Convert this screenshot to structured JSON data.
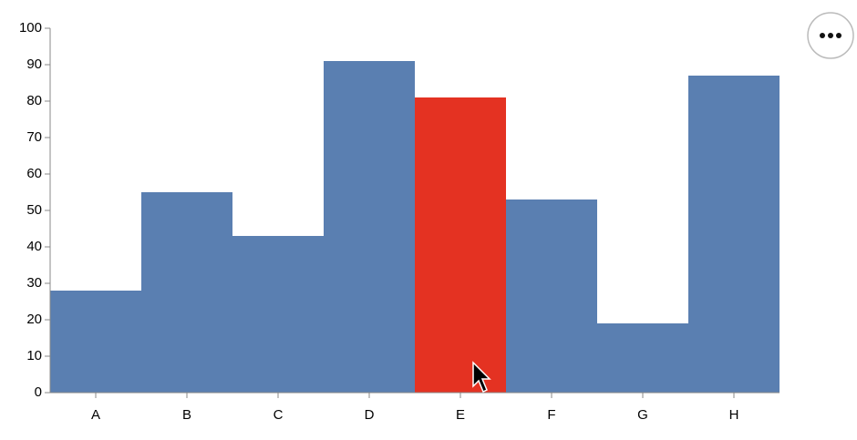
{
  "chart_data": {
    "type": "bar",
    "categories": [
      "A",
      "B",
      "C",
      "D",
      "E",
      "F",
      "G",
      "H"
    ],
    "values": [
      28,
      55,
      43,
      91,
      81,
      53,
      19,
      87
    ],
    "colors": [
      "#5a7fb1",
      "#5a7fb1",
      "#5a7fb1",
      "#5a7fb1",
      "#e43222",
      "#5a7fb1",
      "#5a7fb1",
      "#5a7fb1"
    ],
    "ylim": [
      0,
      100
    ],
    "yticks": [
      0,
      10,
      20,
      30,
      40,
      50,
      60,
      70,
      80,
      90,
      100
    ],
    "grid": false
  }
}
